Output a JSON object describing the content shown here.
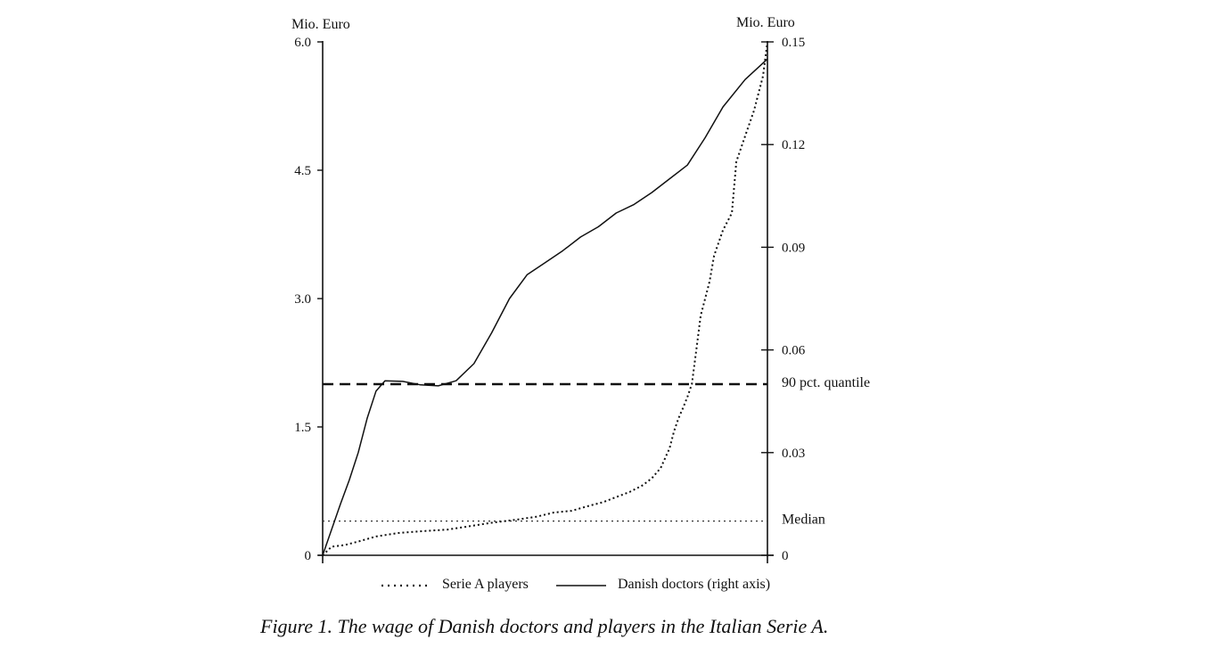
{
  "caption": "Figure 1. The wage of Danish doctors and players in the Italian Serie A.",
  "chart_data": {
    "type": "line",
    "left_axis": {
      "unit": "Mio. Euro",
      "range": [
        0,
        6.0
      ],
      "ticks": [
        {
          "value": 0,
          "label": "0"
        },
        {
          "value": 1.5,
          "label": "1.5"
        },
        {
          "value": 3.0,
          "label": "3.0"
        },
        {
          "value": 4.5,
          "label": "4.5"
        },
        {
          "value": 6.0,
          "label": "6.0"
        }
      ]
    },
    "right_axis": {
      "unit": "Mio. Euro",
      "range": [
        0,
        0.15
      ],
      "ticks": [
        {
          "value": 0,
          "label": "0"
        },
        {
          "value": 0.03,
          "label": "0.03"
        },
        {
          "value": 0.06,
          "label": "0.06"
        },
        {
          "value": 0.09,
          "label": "0.09"
        },
        {
          "value": 0.12,
          "label": "0.12"
        },
        {
          "value": 0.15,
          "label": "0.15"
        }
      ]
    },
    "x_range": [
      0,
      1
    ],
    "series": [
      {
        "name": "Serie A players",
        "axis": "left",
        "style": "dotted",
        "points": [
          [
            0.0,
            0.0
          ],
          [
            0.02,
            0.1
          ],
          [
            0.05,
            0.12
          ],
          [
            0.08,
            0.16
          ],
          [
            0.12,
            0.22
          ],
          [
            0.17,
            0.26
          ],
          [
            0.22,
            0.28
          ],
          [
            0.28,
            0.3
          ],
          [
            0.33,
            0.34
          ],
          [
            0.38,
            0.38
          ],
          [
            0.44,
            0.42
          ],
          [
            0.48,
            0.45
          ],
          [
            0.52,
            0.5
          ],
          [
            0.56,
            0.52
          ],
          [
            0.6,
            0.58
          ],
          [
            0.63,
            0.62
          ],
          [
            0.66,
            0.68
          ],
          [
            0.69,
            0.74
          ],
          [
            0.72,
            0.82
          ],
          [
            0.74,
            0.9
          ],
          [
            0.76,
            1.02
          ],
          [
            0.78,
            1.25
          ],
          [
            0.79,
            1.45
          ],
          [
            0.8,
            1.6
          ],
          [
            0.81,
            1.72
          ],
          [
            0.82,
            1.85
          ],
          [
            0.83,
            2.0
          ],
          [
            0.84,
            2.4
          ],
          [
            0.85,
            2.8
          ],
          [
            0.86,
            3.0
          ],
          [
            0.87,
            3.2
          ],
          [
            0.88,
            3.5
          ],
          [
            0.89,
            3.65
          ],
          [
            0.9,
            3.8
          ],
          [
            0.92,
            4.0
          ],
          [
            0.93,
            4.6
          ],
          [
            0.95,
            4.9
          ],
          [
            0.97,
            5.2
          ],
          [
            0.99,
            5.6
          ],
          [
            1.0,
            6.0
          ]
        ]
      },
      {
        "name": "Danish doctors (right axis)",
        "axis": "right",
        "style": "solid",
        "points": [
          [
            0.0,
            0.0
          ],
          [
            0.04,
            0.015
          ],
          [
            0.06,
            0.022
          ],
          [
            0.08,
            0.03
          ],
          [
            0.1,
            0.04
          ],
          [
            0.12,
            0.048
          ],
          [
            0.14,
            0.051
          ],
          [
            0.18,
            0.0508
          ],
          [
            0.22,
            0.0498
          ],
          [
            0.26,
            0.0495
          ],
          [
            0.3,
            0.051
          ],
          [
            0.34,
            0.056
          ],
          [
            0.38,
            0.065
          ],
          [
            0.42,
            0.075
          ],
          [
            0.46,
            0.082
          ],
          [
            0.5,
            0.0855
          ],
          [
            0.54,
            0.089
          ],
          [
            0.58,
            0.093
          ],
          [
            0.62,
            0.096
          ],
          [
            0.66,
            0.1
          ],
          [
            0.7,
            0.1025
          ],
          [
            0.74,
            0.106
          ],
          [
            0.78,
            0.11
          ],
          [
            0.82,
            0.114
          ],
          [
            0.86,
            0.122
          ],
          [
            0.9,
            0.131
          ],
          [
            0.95,
            0.139
          ],
          [
            1.0,
            0.145
          ]
        ]
      }
    ],
    "reference_lines": [
      {
        "label": "90 pct. quantile",
        "axis": "left",
        "value": 2.0,
        "style": "dashed"
      },
      {
        "label": "Median",
        "axis": "left",
        "value": 0.4,
        "style": "dotted"
      }
    ],
    "legend": {
      "placement": "bottom",
      "entries": [
        {
          "label": "Serie A players",
          "style": "dotted"
        },
        {
          "label": "Danish doctors (right axis)",
          "style": "solid"
        }
      ]
    },
    "grid": false
  }
}
